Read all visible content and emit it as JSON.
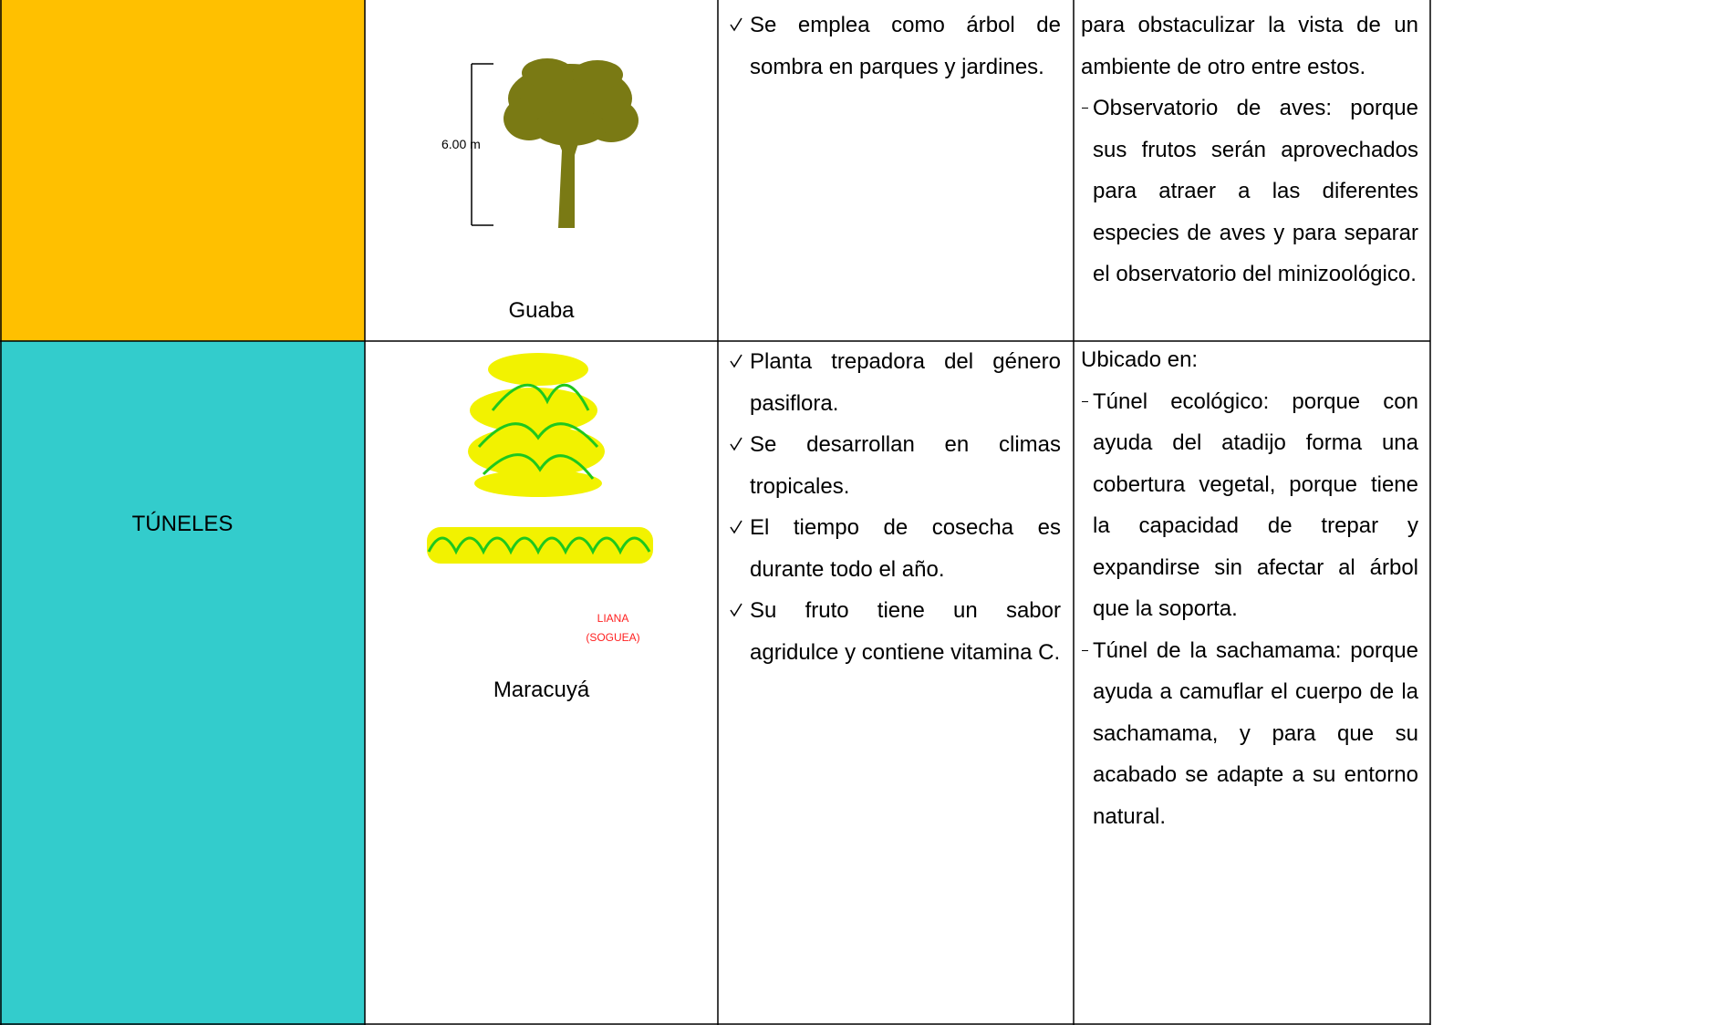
{
  "rows": [
    {
      "plant": "Guaba",
      "scale_label": "6.00 m",
      "characteristics": [
        "Se emplea como árbol de sombra en parques y jardines."
      ],
      "uses": {
        "text": "para obstaculizar la vista de un ambiente de otro entre estos.",
        "items": [
          "Observatorio de aves: porque sus frutos serán aprovechados para atraer a las diferentes especies de aves y para separar el observatorio del minizoológico."
        ]
      }
    },
    {
      "category": "TÚNELES",
      "plant": "Maracuyá",
      "drawing_label": [
        "LIANA",
        "(SOGUEA)"
      ],
      "characteristics": [
        "Planta trepadora del género pasiflora.",
        "Se desarrollan en climas tropicales.",
        "El tiempo de cosecha es durante todo el año.",
        "Su fruto tiene un sabor agridulce y contiene vitamina C."
      ],
      "uses": {
        "text": "Ubicado en:",
        "items": [
          "Túnel ecológico: porque con ayuda del atadijo forma una cobertura vegetal, porque tiene la capacidad de trepar y expandirse sin afectar  al árbol que la soporta.",
          "Túnel de la sachamama: porque ayuda a camuflar el cuerpo de la sachamama, y para que su acabado se adapte a su entorno natural."
        ]
      }
    }
  ]
}
